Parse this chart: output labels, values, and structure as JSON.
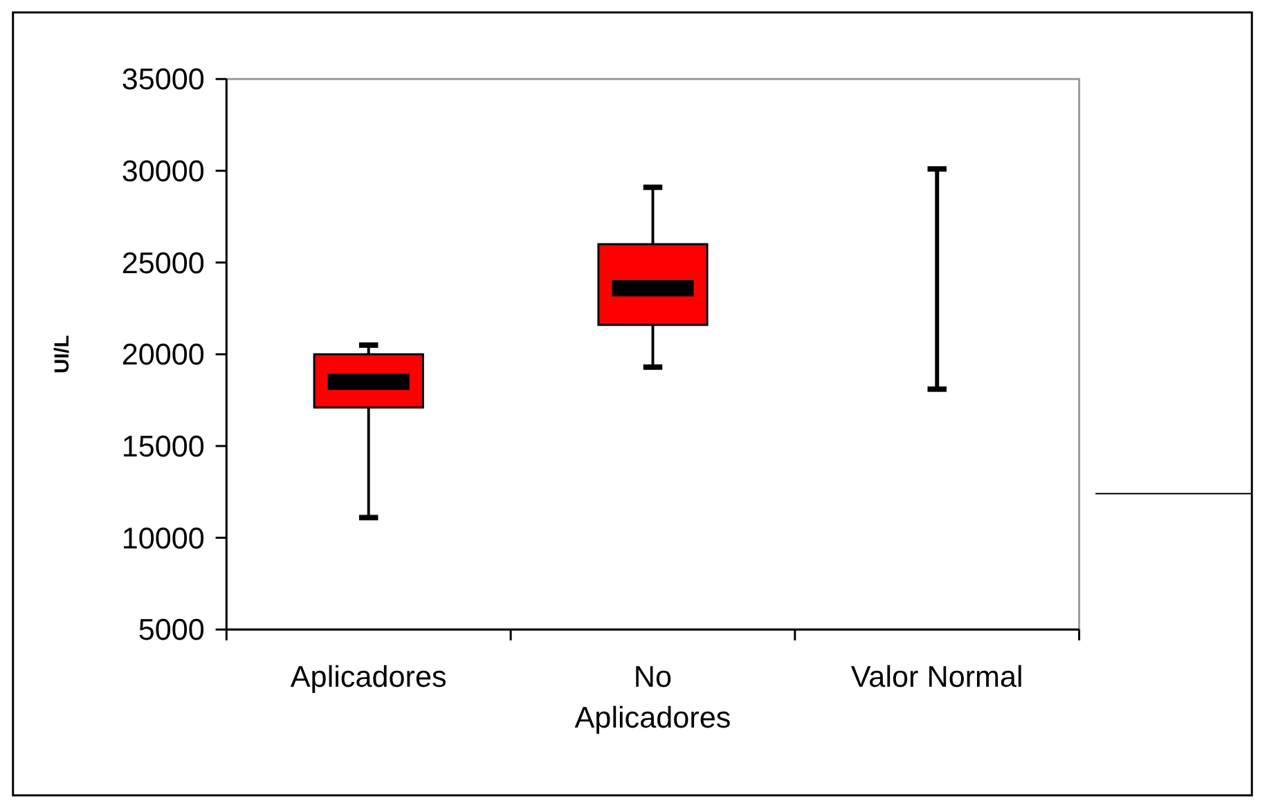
{
  "chart_data": {
    "type": "box",
    "ylabel": "UI/L",
    "categories": [
      "Aplicadores",
      "No Aplicadores",
      "Valor Normal"
    ],
    "color": "#ff0000",
    "ylim": [
      5000,
      35000
    ],
    "yticks": [
      5000,
      10000,
      15000,
      20000,
      25000,
      30000,
      35000
    ],
    "grid": false,
    "boxes": [
      {
        "low": 11100,
        "q1": 17100,
        "median": 18500,
        "q3": 20000,
        "high": 20500
      },
      {
        "low": 19300,
        "q1": 21600,
        "median": 23600,
        "q3": 26000,
        "high": 29100
      },
      null
    ],
    "series": [
      {
        "type": "bar",
        "color": "#000000",
        "values": [
          null,
          null,
          12000
        ],
        "base": [
          null,
          null,
          18100
        ]
      }
    ]
  }
}
